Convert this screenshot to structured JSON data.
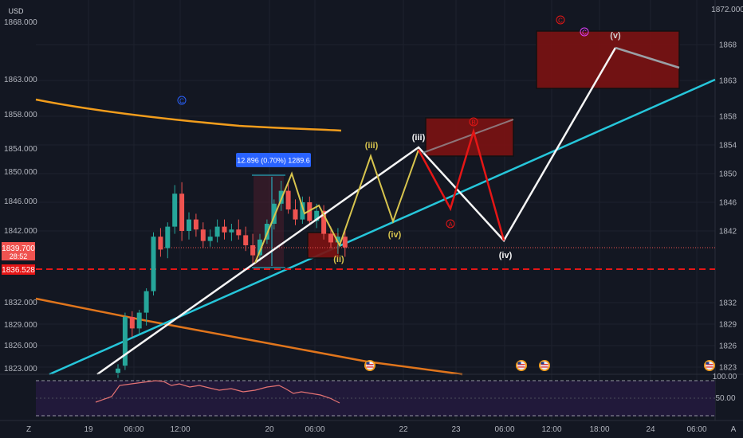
{
  "header": {
    "currency": "USD",
    "price_axis_top_label": "1872.000"
  },
  "price_axis": {
    "labels": [
      "1868.000",
      "1863.000",
      "1858.000",
      "1854.000",
      "1850.000",
      "1846.000",
      "1842.000",
      "1832.000",
      "1829.000",
      "1826.000",
      "1823.000"
    ],
    "current_price": "1839.700",
    "countdown": "28:52",
    "marked_price": "1836.528"
  },
  "time_axis": {
    "labels": [
      "19",
      "06:00",
      "12:00",
      "20",
      "06:00",
      "22",
      "23",
      "06:00",
      "12:00",
      "18:00",
      "24",
      "06:00"
    ]
  },
  "measure_label": "12.896 (0.70%) 1289.6",
  "wave_labels": {
    "c_blue": "C",
    "c_red": "C",
    "c_magenta": "C",
    "a_red": "A",
    "b_red": "B",
    "iii_yellow": "(iii)",
    "iii_white": "(iii)",
    "iv_yellow": "(iv)",
    "ii_yellow": "(ii)",
    "iv_white": "(iv)",
    "v_white": "(v)"
  },
  "oscillator": {
    "upper_label": "100.00",
    "mid_label": "50.00"
  },
  "corner": {
    "left": "Z",
    "right": "A"
  },
  "colors": {
    "bg": "#131722",
    "bull": "#26a69a",
    "bear": "#ef5350",
    "cyan": "#26c6da",
    "orange": "#f29d1c",
    "olive": "#d7c44e",
    "red_wave": "#e51616",
    "zone": "#8b1a1a",
    "axis_text": "#b2b5be"
  },
  "chart_data": {
    "type": "candlestick",
    "y_range": [
      1821,
      1873
    ],
    "price_ticks": [
      1823,
      1826,
      1829,
      1832,
      1842,
      1846,
      1850,
      1854,
      1858,
      1863,
      1868
    ],
    "candles": [
      {
        "o": 1822.2,
        "h": 1823.4,
        "l": 1821.5,
        "c": 1822.8
      },
      {
        "o": 1823.2,
        "h": 1830.6,
        "l": 1822.6,
        "c": 1830.0
      },
      {
        "o": 1830.0,
        "h": 1830.8,
        "l": 1827.2,
        "c": 1828.4
      },
      {
        "o": 1828.4,
        "h": 1831.0,
        "l": 1827.6,
        "c": 1830.6
      },
      {
        "o": 1830.6,
        "h": 1834.0,
        "l": 1828.8,
        "c": 1833.6
      },
      {
        "o": 1833.6,
        "h": 1841.8,
        "l": 1833.0,
        "c": 1841.2
      },
      {
        "o": 1841.2,
        "h": 1842.4,
        "l": 1838.4,
        "c": 1839.4
      },
      {
        "o": 1839.6,
        "h": 1843.2,
        "l": 1838.2,
        "c": 1842.6
      },
      {
        "o": 1842.6,
        "h": 1848.4,
        "l": 1841.6,
        "c": 1847.2
      },
      {
        "o": 1847.2,
        "h": 1848.8,
        "l": 1840.6,
        "c": 1842.0
      },
      {
        "o": 1842.0,
        "h": 1844.6,
        "l": 1840.8,
        "c": 1843.6
      },
      {
        "o": 1843.6,
        "h": 1844.4,
        "l": 1841.2,
        "c": 1842.2
      },
      {
        "o": 1842.2,
        "h": 1843.2,
        "l": 1839.6,
        "c": 1840.6
      },
      {
        "o": 1840.6,
        "h": 1842.2,
        "l": 1839.8,
        "c": 1841.2
      },
      {
        "o": 1841.2,
        "h": 1843.6,
        "l": 1840.4,
        "c": 1842.6
      },
      {
        "o": 1842.6,
        "h": 1843.6,
        "l": 1840.8,
        "c": 1841.8
      },
      {
        "o": 1841.8,
        "h": 1843.0,
        "l": 1840.6,
        "c": 1842.2
      },
      {
        "o": 1842.2,
        "h": 1843.6,
        "l": 1840.8,
        "c": 1841.4
      },
      {
        "o": 1841.4,
        "h": 1842.6,
        "l": 1839.2,
        "c": 1840.0
      },
      {
        "o": 1840.0,
        "h": 1841.6,
        "l": 1837.4,
        "c": 1838.6
      },
      {
        "o": 1838.6,
        "h": 1841.6,
        "l": 1837.8,
        "c": 1840.8
      },
      {
        "o": 1840.8,
        "h": 1843.6,
        "l": 1840.2,
        "c": 1843.0
      },
      {
        "o": 1843.0,
        "h": 1846.4,
        "l": 1842.2,
        "c": 1845.8
      },
      {
        "o": 1845.8,
        "h": 1849.0,
        "l": 1844.8,
        "c": 1847.6
      },
      {
        "o": 1847.6,
        "h": 1848.8,
        "l": 1844.4,
        "c": 1845.0
      },
      {
        "o": 1845.0,
        "h": 1846.4,
        "l": 1842.8,
        "c": 1843.6
      },
      {
        "o": 1843.6,
        "h": 1846.8,
        "l": 1843.0,
        "c": 1846.0
      },
      {
        "o": 1846.0,
        "h": 1846.8,
        "l": 1842.8,
        "c": 1843.4
      },
      {
        "o": 1843.4,
        "h": 1845.8,
        "l": 1842.4,
        "c": 1844.8
      },
      {
        "o": 1844.8,
        "h": 1845.6,
        "l": 1840.8,
        "c": 1841.6
      },
      {
        "o": 1841.6,
        "h": 1842.6,
        "l": 1839.6,
        "c": 1840.4
      },
      {
        "o": 1840.4,
        "h": 1842.4,
        "l": 1838.8,
        "c": 1841.2
      },
      {
        "o": 1841.2,
        "h": 1842.0,
        "l": 1838.4,
        "c": 1839.7
      }
    ],
    "current_price": 1839.7,
    "marked_level": 1836.528,
    "measured_move": {
      "change": 12.896,
      "percent": 0.7,
      "volume": 1289.6
    }
  }
}
